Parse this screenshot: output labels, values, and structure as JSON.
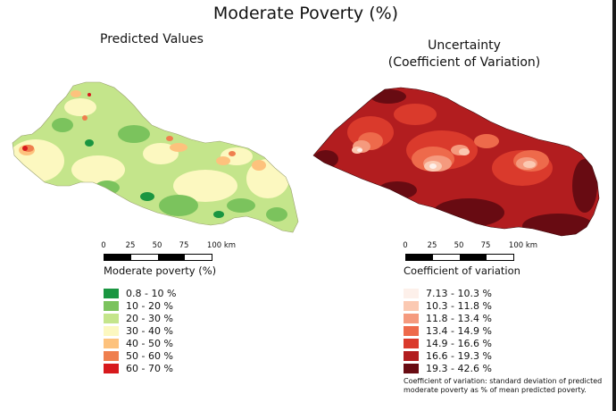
{
  "title": "Moderate Poverty (%)",
  "left_panel": {
    "title": "Predicted Values",
    "scalebar": {
      "labels": [
        "0",
        "25",
        "50",
        "75",
        "100 km"
      ]
    },
    "legend": {
      "title": "Moderate poverty (%)",
      "items": [
        {
          "label": "0.8 - 10 %",
          "color": "#1a9641"
        },
        {
          "label": "10 - 20 %",
          "color": "#7bc35d"
        },
        {
          "label": "20 - 30 %",
          "color": "#c4e58b"
        },
        {
          "label": "30 - 40 %",
          "color": "#fcf8c0"
        },
        {
          "label": "40 - 50 %",
          "color": "#fdc27d"
        },
        {
          "label": "50 - 60 %",
          "color": "#ef7f4e"
        },
        {
          "label": "60 - 70 %",
          "color": "#d7191c"
        }
      ]
    }
  },
  "right_panel": {
    "title_line1": "Uncertainty",
    "title_line2": "(Coefficient of Variation)",
    "scalebar": {
      "labels": [
        "0",
        "25",
        "50",
        "75",
        "100 km"
      ]
    },
    "legend": {
      "title": "Coefficient of variation",
      "items": [
        {
          "label": "7.13 - 10.3 %",
          "color": "#fdf0ea"
        },
        {
          "label": "10.3 - 11.8 %",
          "color": "#fbc9b2"
        },
        {
          "label": "11.8 - 13.4 %",
          "color": "#f59a7e"
        },
        {
          "label": "13.4 - 14.9 %",
          "color": "#ee6a4b"
        },
        {
          "label": "14.9 - 16.6 %",
          "color": "#da3a2c"
        },
        {
          "label": "16.6 - 19.3 %",
          "color": "#b21d1f"
        },
        {
          "label": "19.3 - 42.6 %",
          "color": "#680b12"
        }
      ]
    },
    "note": "Coefficient of variation: standard deviation of predicted moderate poverty as % of mean predicted poverty."
  }
}
